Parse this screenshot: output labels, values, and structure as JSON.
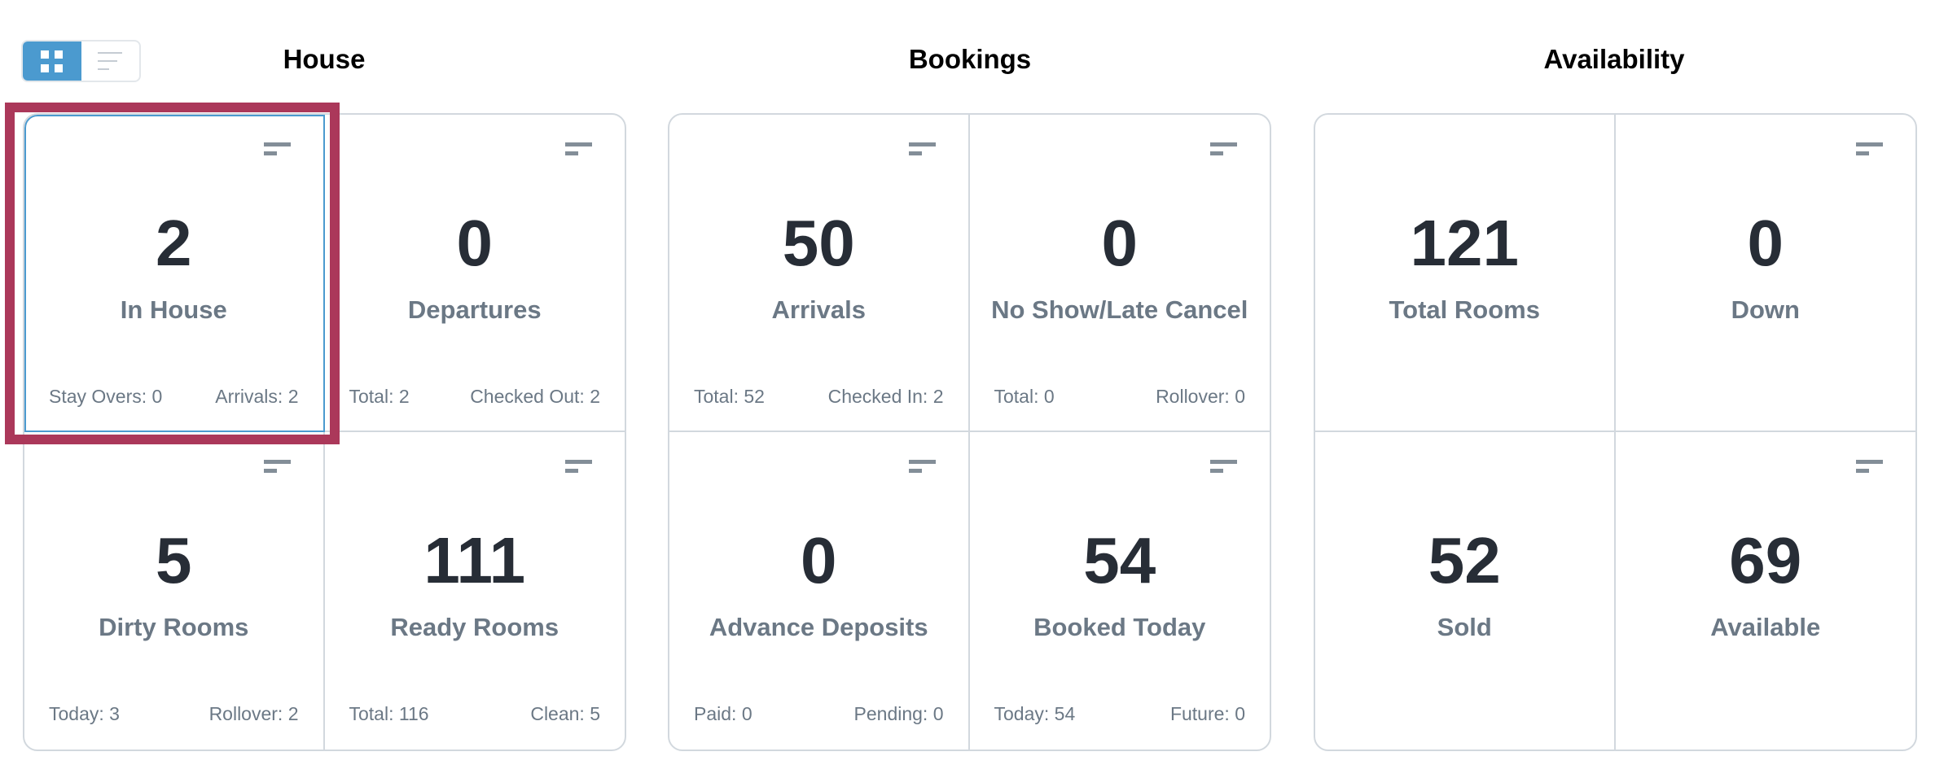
{
  "view_toggle": {
    "active": "grid",
    "options": [
      "grid",
      "list"
    ],
    "accent_color": "#4b9acf"
  },
  "highlight_color": "#ab385a",
  "sections": [
    {
      "title": "House",
      "cards": [
        {
          "value": "2",
          "label": "In House",
          "filter_icon": true,
          "selected": true,
          "footer": [
            "Stay Overs: 0",
            "Arrivals: 2"
          ]
        },
        {
          "value": "0",
          "label": "Departures",
          "filter_icon": true,
          "footer": [
            "Total: 2",
            "Checked Out: 2"
          ]
        },
        {
          "value": "5",
          "label": "Dirty Rooms",
          "filter_icon": true,
          "footer": [
            "Today: 3",
            "Rollover: 2"
          ]
        },
        {
          "value": "111",
          "label": "Ready Rooms",
          "filter_icon": true,
          "footer": [
            "Total: 116",
            "Clean: 5"
          ]
        }
      ]
    },
    {
      "title": "Bookings",
      "cards": [
        {
          "value": "50",
          "label": "Arrivals",
          "filter_icon": true,
          "footer": [
            "Total: 52",
            "Checked In: 2"
          ]
        },
        {
          "value": "0",
          "label": "No Show/Late Cancel",
          "filter_icon": true,
          "footer": [
            "Total: 0",
            "Rollover: 0"
          ]
        },
        {
          "value": "0",
          "label": "Advance Deposits",
          "filter_icon": true,
          "footer": [
            "Paid: 0",
            "Pending: 0"
          ]
        },
        {
          "value": "54",
          "label": "Booked Today",
          "filter_icon": true,
          "footer": [
            "Today: 54",
            "Future: 0"
          ]
        }
      ]
    },
    {
      "title": "Availability",
      "cards": [
        {
          "value": "121",
          "label": "Total Rooms",
          "filter_icon": false,
          "footer": []
        },
        {
          "value": "0",
          "label": "Down",
          "filter_icon": true,
          "footer": []
        },
        {
          "value": "52",
          "label": "Sold",
          "filter_icon": false,
          "footer": []
        },
        {
          "value": "69",
          "label": "Available",
          "filter_icon": true,
          "footer": []
        }
      ]
    }
  ]
}
